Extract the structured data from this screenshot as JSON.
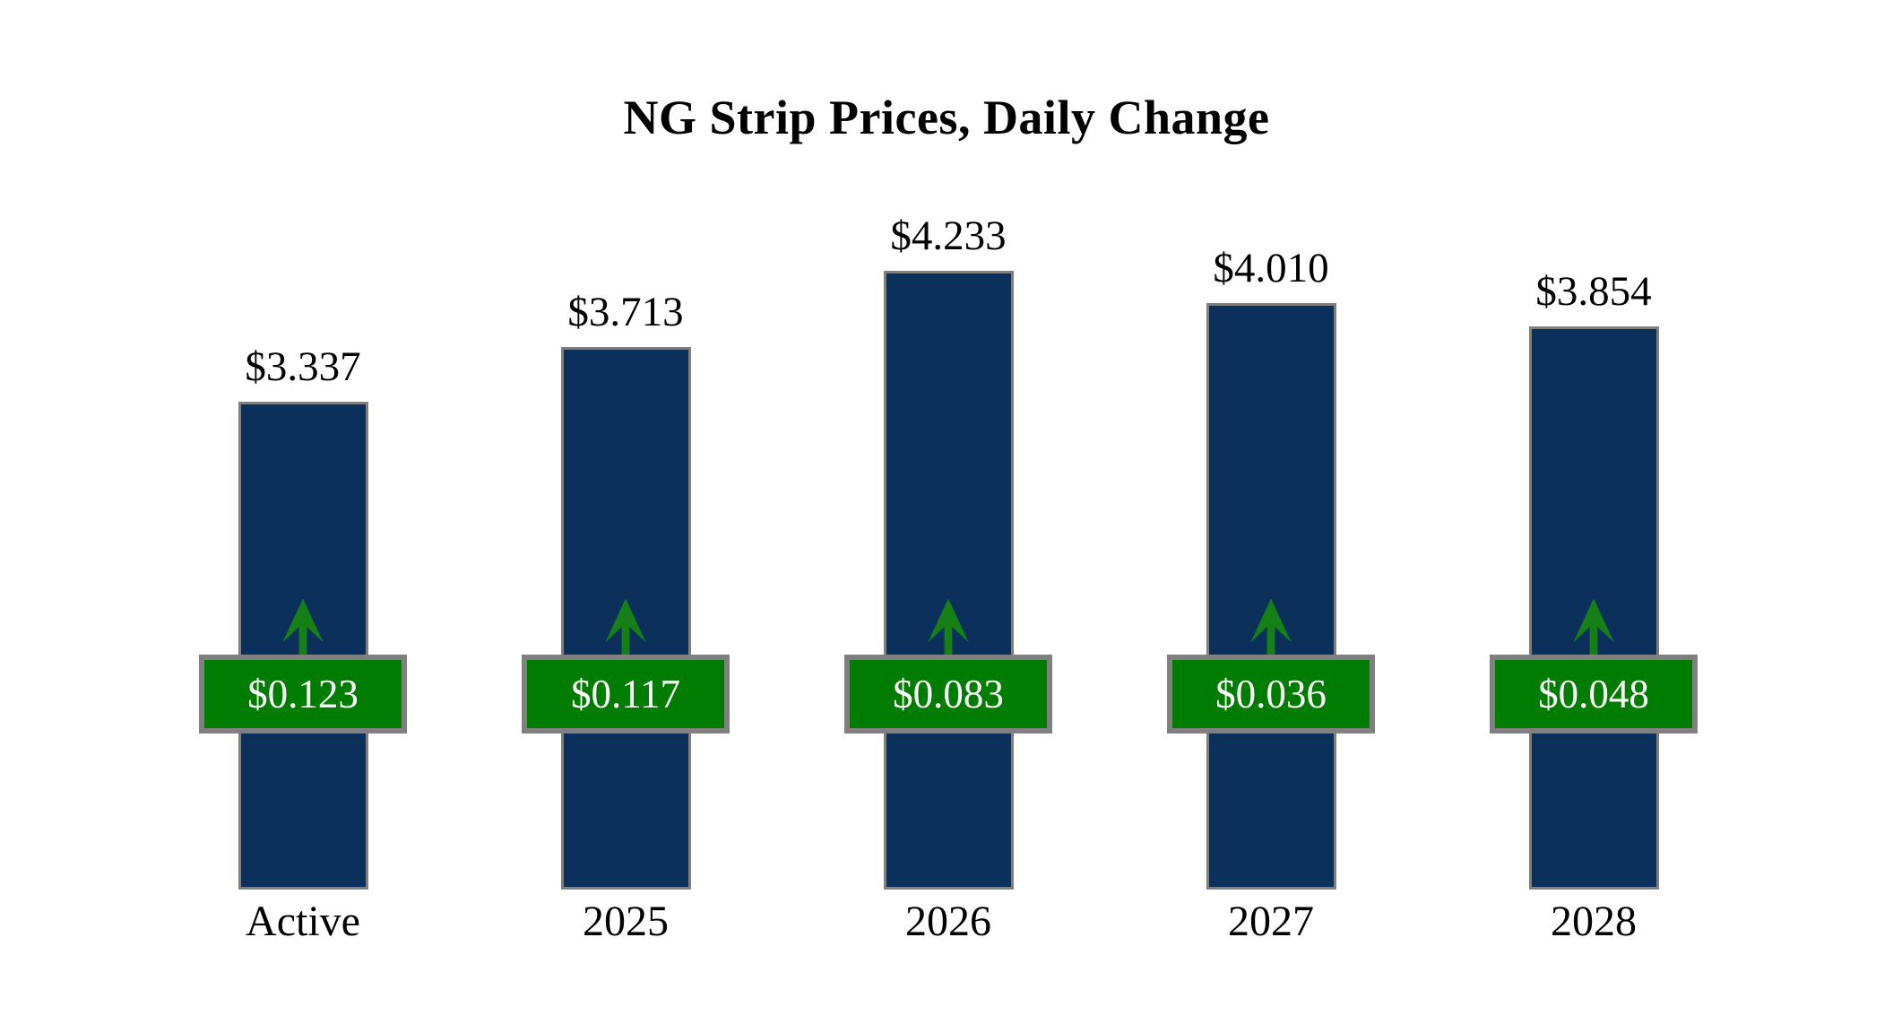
{
  "title": "NG Strip Prices, Daily Change",
  "chart_data": {
    "type": "bar",
    "title": "NG Strip Prices, Daily Change",
    "xlabel": "",
    "ylabel": "",
    "categories": [
      "Active",
      "2025",
      "2026",
      "2027",
      "2028"
    ],
    "values": [
      3.337,
      3.713,
      4.233,
      4.01,
      3.854
    ],
    "value_labels": [
      "$3.337",
      "$3.713",
      "$4.233",
      "$4.010",
      "$3.854"
    ],
    "daily_changes": [
      0.123,
      0.117,
      0.083,
      0.036,
      0.048
    ],
    "change_labels": [
      "$0.123",
      "$0.117",
      "$0.083",
      "$0.036",
      "$0.048"
    ],
    "change_direction": "up",
    "ylim": [
      0,
      4.6
    ],
    "grid": false,
    "legend": false,
    "colors": {
      "background": "#ffffff",
      "bar_fill": "#0b305c",
      "bar_border": "#7f7f7f",
      "badge_fill": "#007d00",
      "badge_border": "#808080",
      "badge_text": "#ffffff",
      "arrow": "#158015",
      "label_text": "#000000"
    }
  }
}
